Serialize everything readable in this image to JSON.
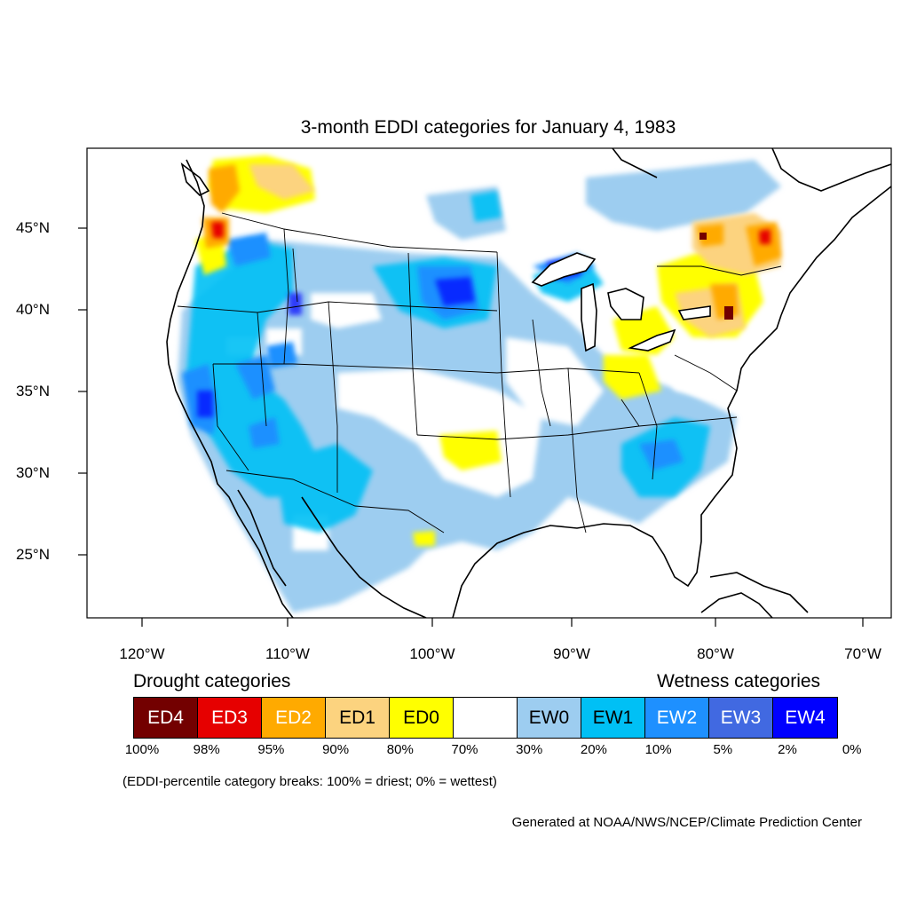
{
  "title": "3-month EDDI categories for January 4, 1983",
  "lat_labels": [
    "45°N",
    "40°N",
    "35°N",
    "30°N",
    "25°N"
  ],
  "lon_labels": [
    "120°W",
    "110°W",
    "100°W",
    "90°W",
    "80°W",
    "70°W"
  ],
  "drought_heading": "Drought categories",
  "wetness_heading": "Wetness categories",
  "legend": [
    {
      "label": "ED4",
      "color": "#730000",
      "text_color": "#ffffff"
    },
    {
      "label": "ED3",
      "color": "#e60000",
      "text_color": "#ffffff"
    },
    {
      "label": "ED2",
      "color": "#ffaa00",
      "text_color": "#ffffff"
    },
    {
      "label": "ED1",
      "color": "#fcd37f",
      "text_color": "#000000"
    },
    {
      "label": "ED0",
      "color": "#ffff00",
      "text_color": "#000000"
    },
    {
      "label": "",
      "color": "#ffffff",
      "text_color": "#000000"
    },
    {
      "label": "EW0",
      "color": "#9dcdf0",
      "text_color": "#000000"
    },
    {
      "label": "EW1",
      "color": "#00c0f5",
      "text_color": "#000000"
    },
    {
      "label": "EW2",
      "color": "#1e90ff",
      "text_color": "#ffffff"
    },
    {
      "label": "EW3",
      "color": "#4169e1",
      "text_color": "#ffffff"
    },
    {
      "label": "EW4",
      "color": "#0000ff",
      "text_color": "#ffffff"
    }
  ],
  "percent_breaks": [
    "100%",
    "98%",
    "95%",
    "90%",
    "80%",
    "70%",
    "30%",
    "20%",
    "10%",
    "5%",
    "2%",
    "0%"
  ],
  "note": "(EDDI-percentile category breaks: 100% = driest; 0% = wettest)",
  "credit": "Generated at NOAA/NWS/NCEP/Climate Prediction Center"
}
